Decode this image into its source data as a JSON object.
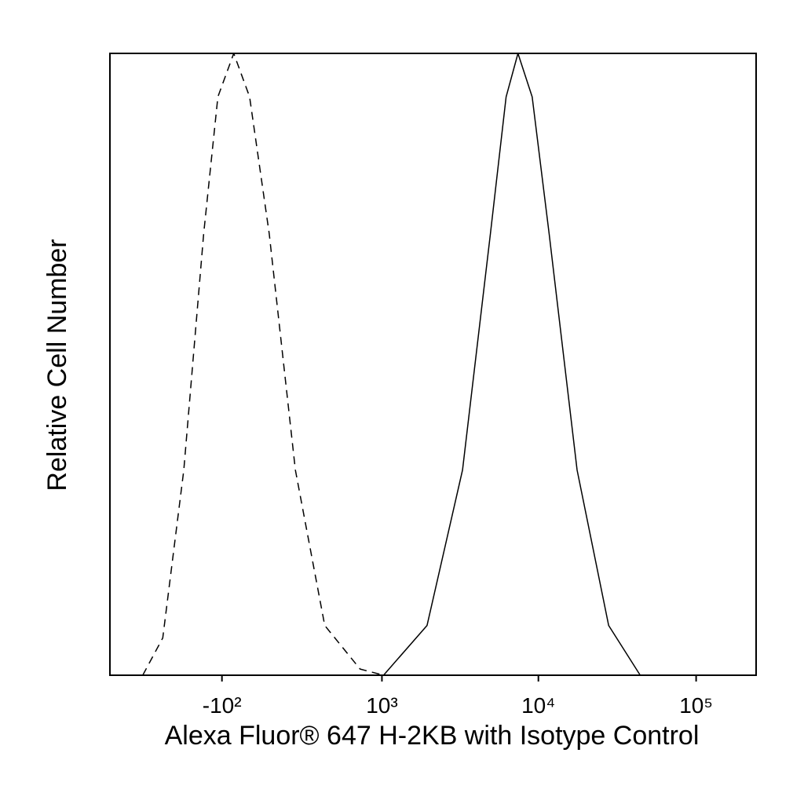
{
  "chart_data": {
    "type": "line",
    "x_label": "Alexa Fluor® 647 H-2KB with Isotype Control",
    "y_label": "Relative Cell Number",
    "xscale": {
      "type": "arcsinh",
      "cofactor": 280
    },
    "xlim": [
      -1000,
      240000
    ],
    "ylim": [
      0,
      100
    ],
    "xticks": [
      {
        "value": -100,
        "label": "-10²"
      },
      {
        "value": 1000,
        "label": "10³"
      },
      {
        "value": 10000,
        "label": "10⁴"
      },
      {
        "value": 100000,
        "label": "10⁵"
      }
    ],
    "series": [
      {
        "name": "Isotype Control",
        "color": "#000000",
        "dashed": true,
        "x": [
          -600,
          -430,
          -290,
          -184,
          -118,
          -50,
          15,
          97,
          220,
          398,
          714,
          1025
        ],
        "values": [
          0,
          6,
          33,
          71,
          93,
          100,
          93,
          71,
          33,
          8,
          1,
          0
        ]
      },
      {
        "name": "H-2KB",
        "color": "#000000",
        "dashed": false,
        "x": [
          1025,
          1960,
          3300,
          4960,
          6240,
          7420,
          9130,
          11700,
          17600,
          27900,
          44200
        ],
        "values": [
          0,
          8,
          33,
          71,
          93,
          100,
          93,
          71,
          33,
          8,
          0
        ]
      }
    ]
  }
}
